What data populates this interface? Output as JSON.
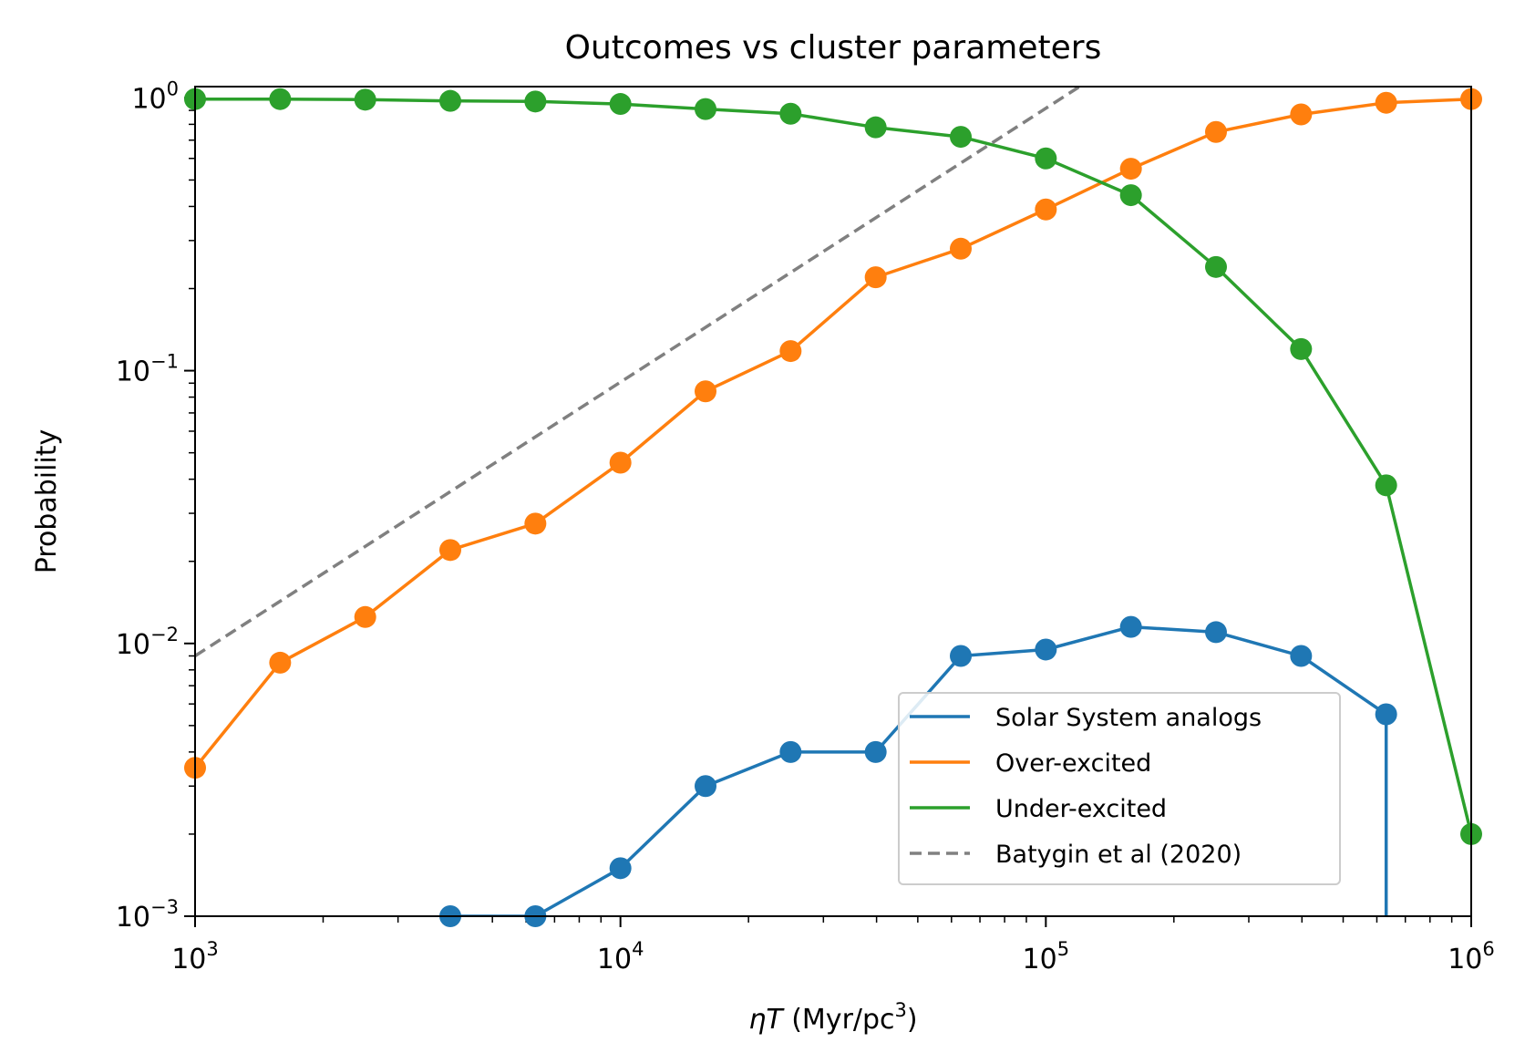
{
  "chart_data": {
    "type": "line",
    "title": "Outcomes vs cluster parameters",
    "xlabel": {
      "symbol": "ηT",
      "unit_prefix": " (Myr/pc",
      "unit_power": "3",
      "unit_suffix": ")"
    },
    "ylabel": "Probability",
    "xscale": "log",
    "yscale": "log",
    "xlim": [
      1000,
      1000000
    ],
    "ylim": [
      0.001,
      1.1
    ],
    "x_ticks": [
      {
        "value": 1000,
        "base": "10",
        "exp": "3"
      },
      {
        "value": 10000,
        "base": "10",
        "exp": "4"
      },
      {
        "value": 100000,
        "base": "10",
        "exp": "5"
      },
      {
        "value": 1000000,
        "base": "10",
        "exp": "6"
      }
    ],
    "y_ticks": [
      {
        "value": 0.001,
        "base": "10",
        "exp": "−3"
      },
      {
        "value": 0.01,
        "base": "10",
        "exp": "−2"
      },
      {
        "value": 0.1,
        "base": "10",
        "exp": "−1"
      },
      {
        "value": 1,
        "base": "10",
        "exp": "0"
      }
    ],
    "legend_position": "lower-right",
    "series": [
      {
        "name": "Solar System analogs",
        "color": "#1f77b4",
        "style": "solid-markers",
        "points": [
          [
            3981,
            0.001
          ],
          [
            6310,
            0.001
          ],
          [
            10000,
            0.0015
          ],
          [
            15849,
            0.003
          ],
          [
            25119,
            0.004
          ],
          [
            39811,
            0.004
          ],
          [
            63096,
            0.009
          ],
          [
            100000,
            0.0095
          ],
          [
            158489,
            0.0115
          ],
          [
            251189,
            0.011
          ],
          [
            398107,
            0.009
          ],
          [
            630957,
            0.0055
          ]
        ],
        "drop_to_axis_at": 630957
      },
      {
        "name": "Over-excited",
        "color": "#ff7f0e",
        "style": "solid-markers",
        "points": [
          [
            1000,
            0.0035
          ],
          [
            1585,
            0.0085
          ],
          [
            2512,
            0.0125
          ],
          [
            3981,
            0.022
          ],
          [
            6310,
            0.0275
          ],
          [
            10000,
            0.046
          ],
          [
            15849,
            0.084
          ],
          [
            25119,
            0.118
          ],
          [
            39811,
            0.22
          ],
          [
            63096,
            0.28
          ],
          [
            100000,
            0.39
          ],
          [
            158489,
            0.55
          ],
          [
            251189,
            0.75
          ],
          [
            398107,
            0.87
          ],
          [
            630957,
            0.96
          ],
          [
            1000000,
            0.99
          ]
        ]
      },
      {
        "name": "Under-excited",
        "color": "#2ca02c",
        "style": "solid-markers",
        "points": [
          [
            1000,
            0.99
          ],
          [
            1585,
            0.99
          ],
          [
            2512,
            0.985
          ],
          [
            3981,
            0.975
          ],
          [
            6310,
            0.97
          ],
          [
            10000,
            0.95
          ],
          [
            15849,
            0.91
          ],
          [
            25119,
            0.875
          ],
          [
            39811,
            0.78
          ],
          [
            63096,
            0.72
          ],
          [
            100000,
            0.6
          ],
          [
            158489,
            0.44
          ],
          [
            251189,
            0.24
          ],
          [
            398107,
            0.12
          ],
          [
            630957,
            0.038
          ],
          [
            1000000,
            0.002
          ]
        ]
      },
      {
        "name": "Batygin et al (2020)",
        "color": "#808080",
        "style": "dashed",
        "points": [
          [
            1000,
            0.009
          ],
          [
            120000,
            1.1
          ]
        ]
      }
    ]
  }
}
